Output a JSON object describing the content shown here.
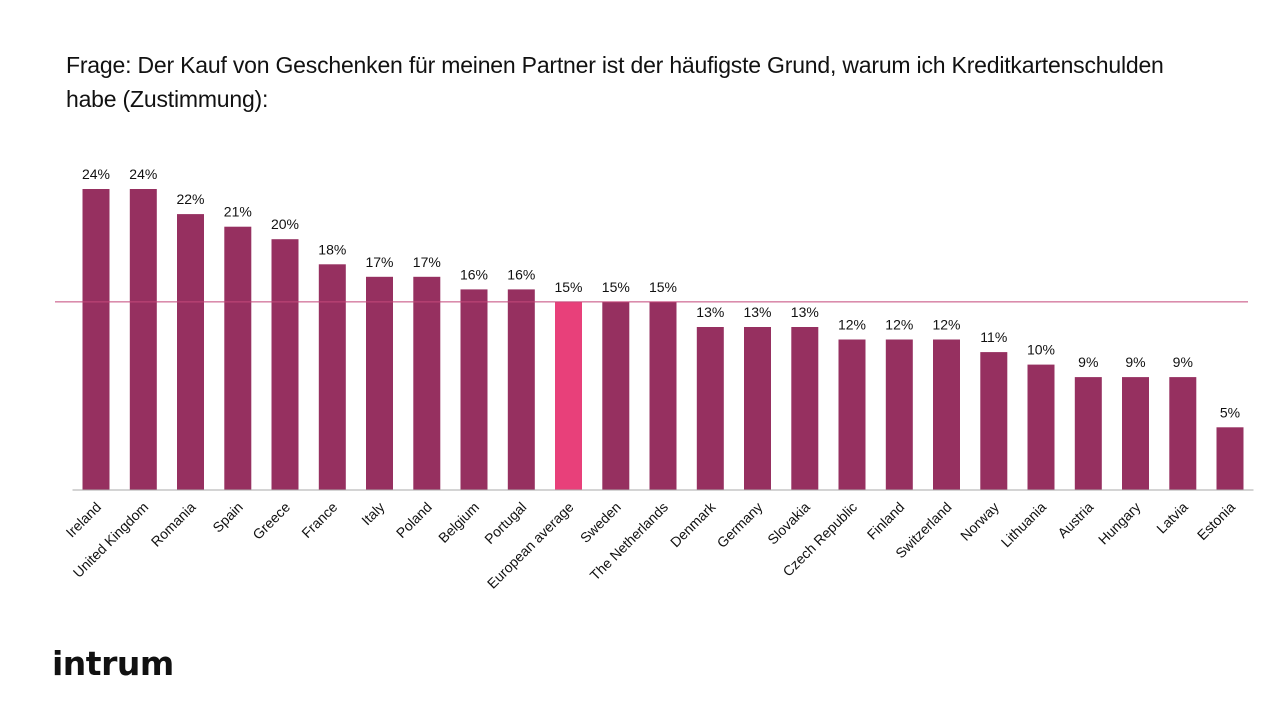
{
  "chart_data": {
    "type": "bar",
    "title": "Frage: Der Kauf von Geschenken für meinen Partner ist der häufigste Grund, warum ich Kreditkartenschulden habe (Zustimmung):",
    "categories": [
      "Ireland",
      "United Kingdom",
      "Romania",
      "Spain",
      "Greece",
      "France",
      "Italy",
      "Poland",
      "Belgium",
      "Portugal",
      "European average",
      "Sweden",
      "The Netherlands",
      "Denmark",
      "Germany",
      "Slovakia",
      "Czech Republic",
      "Finland",
      "Switzerland",
      "Norway",
      "Lithuania",
      "Austria",
      "Hungary",
      "Latvia",
      "Estonia"
    ],
    "values": [
      24,
      24,
      22,
      21,
      20,
      18,
      17,
      17,
      16,
      16,
      15,
      15,
      15,
      13,
      13,
      13,
      12,
      12,
      12,
      11,
      10,
      9,
      9,
      9,
      5
    ],
    "value_labels": [
      "24%",
      "24%",
      "22%",
      "21%",
      "20%",
      "18%",
      "17%",
      "17%",
      "16%",
      "16%",
      "15%",
      "15%",
      "15%",
      "13%",
      "13%",
      "13%",
      "12%",
      "12%",
      "12%",
      "11%",
      "10%",
      "9%",
      "9%",
      "9%",
      "5%"
    ],
    "highlight_category": "European average",
    "reference_line": 15,
    "ylim": [
      0,
      24
    ],
    "grid": false,
    "legend": "none",
    "colors": {
      "bar": "#963060",
      "highlight": "#e8407a",
      "reference_line": "#c4487a",
      "axis": "#aaaaaa"
    }
  },
  "brand": {
    "logo_text": "intrum"
  }
}
